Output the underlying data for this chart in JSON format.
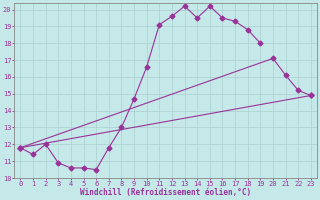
{
  "xlabel": "Windchill (Refroidissement éolien,°C)",
  "xlim": [
    -0.5,
    23.5
  ],
  "ylim": [
    10,
    20.4
  ],
  "yticks": [
    10,
    11,
    12,
    13,
    14,
    15,
    16,
    17,
    18,
    19,
    20
  ],
  "xticks": [
    0,
    1,
    2,
    3,
    4,
    5,
    6,
    7,
    8,
    9,
    10,
    11,
    12,
    13,
    14,
    15,
    16,
    17,
    18,
    19,
    20,
    21,
    22,
    23
  ],
  "bg_color": "#c5e8e8",
  "line_color": "#993399",
  "grid_color": "#b0d4d4",
  "line1_x": [
    0,
    1,
    2,
    3,
    4,
    5,
    6,
    7,
    8,
    9,
    10,
    11,
    12,
    13,
    14,
    15,
    16,
    17,
    18,
    19
  ],
  "line1_y": [
    11.8,
    11.4,
    12.0,
    10.9,
    10.6,
    10.6,
    10.5,
    11.8,
    13.0,
    14.7,
    16.6,
    19.1,
    19.6,
    20.2,
    19.5,
    20.2,
    19.5,
    19.3,
    18.8,
    18.0
  ],
  "line2_x": [
    0,
    20,
    21,
    22,
    23
  ],
  "line2_y": [
    11.8,
    17.1,
    16.1,
    15.2,
    14.9
  ],
  "line3_x": [
    0,
    23
  ],
  "line3_y": [
    11.8,
    14.9
  ]
}
